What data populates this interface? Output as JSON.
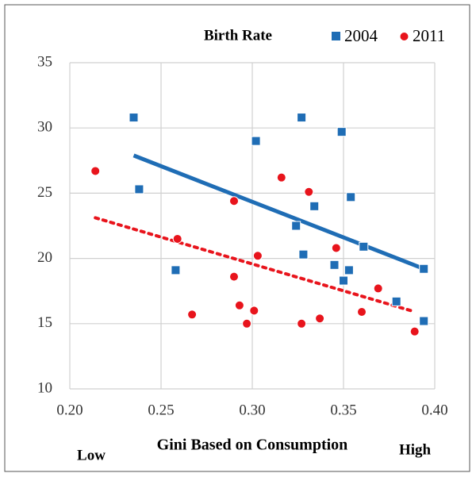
{
  "chart_data": {
    "type": "scatter",
    "title": "Birth Rate",
    "x_label": "Gini Based on Consumption",
    "annotations": [
      "Low",
      "High"
    ],
    "xlim": [
      0.2,
      0.4
    ],
    "xticks": [
      {
        "value": 0.2,
        "label": "0.20"
      },
      {
        "value": 0.25,
        "label": "0.25"
      },
      {
        "value": 0.3,
        "label": "0.30"
      },
      {
        "value": 0.35,
        "label": "0.35"
      },
      {
        "value": 0.4,
        "label": "0.40"
      }
    ],
    "ylim": [
      10,
      35
    ],
    "yticks": [
      10,
      15,
      20,
      25,
      30,
      35
    ],
    "grid": true,
    "trendline": true,
    "series": [
      {
        "name": "2004",
        "color": "#1f6db5",
        "marker": "square",
        "line_style": "solid",
        "x": [
          0.235,
          0.238,
          0.258,
          0.302,
          0.327,
          0.324,
          0.334,
          0.328,
          0.349,
          0.354,
          0.345,
          0.35,
          0.353,
          0.361,
          0.379,
          0.394,
          0.394
        ],
        "values": [
          30.8,
          25.3,
          19.1,
          29.0,
          30.8,
          22.5,
          24.0,
          20.3,
          29.7,
          24.7,
          19.5,
          18.3,
          19.1,
          20.9,
          16.7,
          15.2,
          19.2
        ]
      },
      {
        "name": "2011",
        "color": "#e8141c",
        "marker": "circle",
        "line_style": "dotted",
        "x": [
          0.214,
          0.259,
          0.267,
          0.29,
          0.29,
          0.293,
          0.297,
          0.301,
          0.303,
          0.316,
          0.327,
          0.331,
          0.337,
          0.346,
          0.36,
          0.369,
          0.389
        ],
        "values": [
          26.7,
          21.5,
          15.7,
          24.4,
          18.6,
          16.4,
          15.0,
          16.0,
          20.2,
          26.2,
          15.0,
          25.1,
          15.4,
          20.8,
          15.9,
          17.7,
          14.4
        ]
      }
    ]
  }
}
